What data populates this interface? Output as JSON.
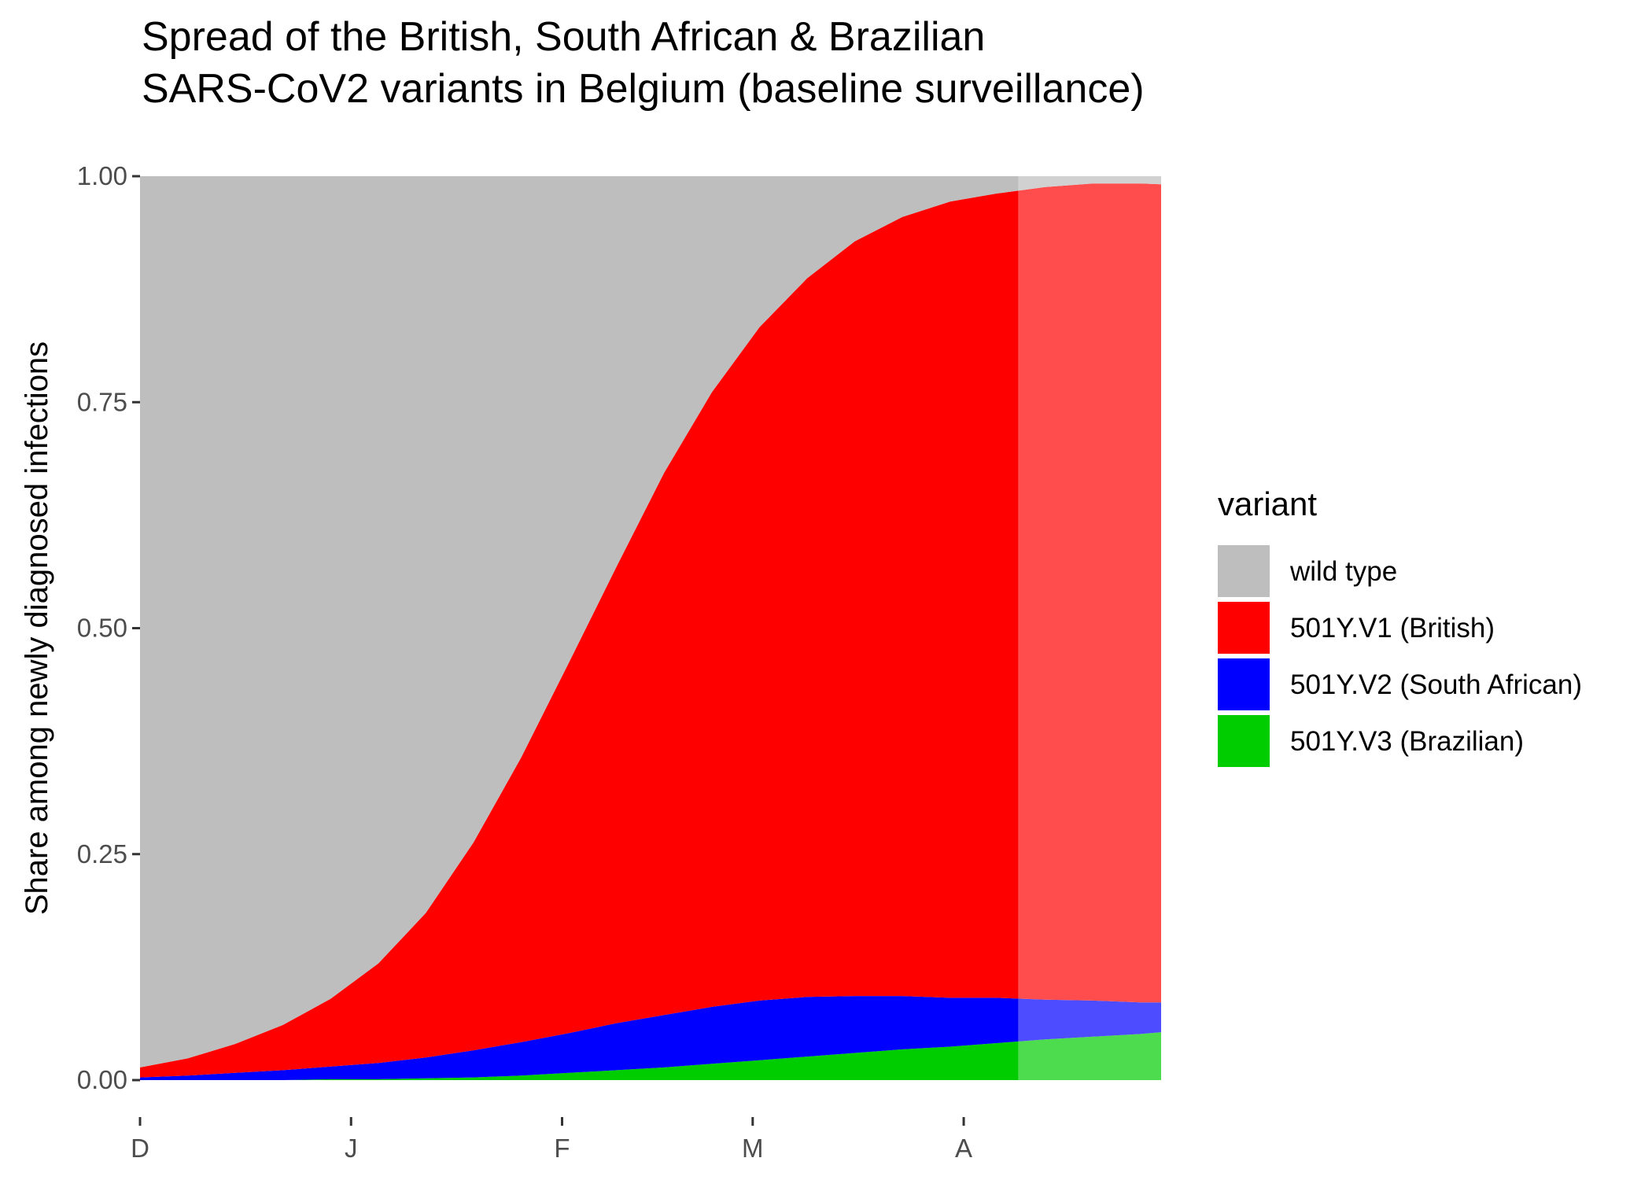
{
  "chart_data": {
    "type": "area",
    "stacked": true,
    "title": "Spread of the British, South African & Brazilian\nSARS-CoV2 variants in Belgium (baseline surveillance)",
    "xlabel": "",
    "ylabel": "Share among newly diagnosed infections",
    "ylim": [
      0,
      1
    ],
    "y_ticks": [
      "0.00",
      "0.25",
      "0.50",
      "0.75",
      "1.00"
    ],
    "x_ticks": [
      {
        "date": "2020-12-01",
        "label": "D"
      },
      {
        "date": "2021-01-01",
        "label": "J"
      },
      {
        "date": "2021-02-01",
        "label": "F"
      },
      {
        "date": "2021-03-01",
        "label": "M"
      },
      {
        "date": "2021-04-01",
        "label": "A"
      }
    ],
    "xlim": [
      "2020-12-01",
      "2021-04-30"
    ],
    "observed_until": "2021-04-09",
    "grid": false,
    "legend": {
      "title": "variant",
      "position": "right"
    },
    "x": [
      "2020-12-01",
      "2020-12-08",
      "2020-12-15",
      "2020-12-22",
      "2020-12-29",
      "2021-01-05",
      "2021-01-12",
      "2021-01-19",
      "2021-01-26",
      "2021-02-02",
      "2021-02-09",
      "2021-02-16",
      "2021-02-23",
      "2021-03-02",
      "2021-03-09",
      "2021-03-16",
      "2021-03-23",
      "2021-03-30",
      "2021-04-06",
      "2021-04-13",
      "2021-04-20",
      "2021-04-27",
      "2021-04-30"
    ],
    "series": [
      {
        "name": "501Y.V3 (Brazilian)",
        "color": "#00CD00",
        "values": [
          0.0,
          0.0,
          0.0,
          0.0,
          0.001,
          0.001,
          0.002,
          0.003,
          0.005,
          0.008,
          0.011,
          0.014,
          0.018,
          0.022,
          0.026,
          0.03,
          0.034,
          0.037,
          0.041,
          0.045,
          0.048,
          0.051,
          0.053
        ]
      },
      {
        "name": "501Y.V2 (South African)",
        "color": "#0000FF",
        "values": [
          0.003,
          0.005,
          0.008,
          0.011,
          0.014,
          0.018,
          0.023,
          0.03,
          0.037,
          0.044,
          0.052,
          0.058,
          0.063,
          0.066,
          0.066,
          0.063,
          0.059,
          0.054,
          0.05,
          0.044,
          0.04,
          0.035,
          0.033
        ]
      },
      {
        "name": "501Y.V1 (British)",
        "color": "#FF0000",
        "values": [
          0.011,
          0.019,
          0.032,
          0.05,
          0.075,
          0.11,
          0.16,
          0.23,
          0.315,
          0.41,
          0.505,
          0.6,
          0.68,
          0.745,
          0.795,
          0.835,
          0.862,
          0.881,
          0.89,
          0.899,
          0.904,
          0.906,
          0.905
        ]
      },
      {
        "name": "wild type",
        "color": "#BEBEBE",
        "values": [
          0.986,
          0.976,
          0.96,
          0.939,
          0.91,
          0.871,
          0.815,
          0.737,
          0.643,
          0.538,
          0.432,
          0.328,
          0.239,
          0.167,
          0.113,
          0.072,
          0.045,
          0.028,
          0.019,
          0.012,
          0.008,
          0.008,
          0.009
        ]
      }
    ]
  }
}
